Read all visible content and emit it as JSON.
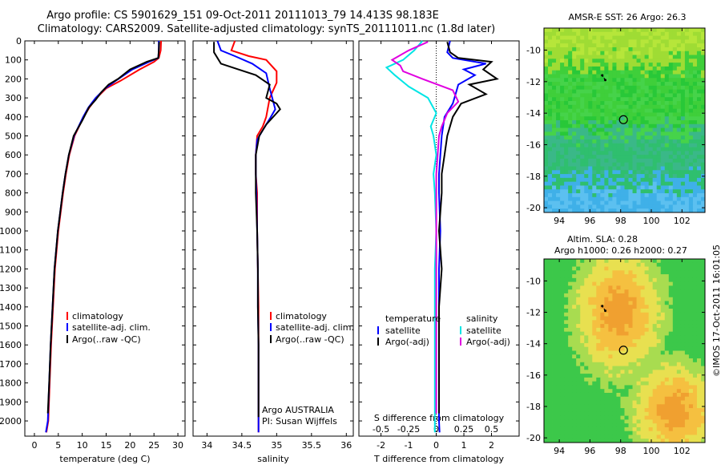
{
  "header": {
    "line1": "Argo profile: CS 5901629_151 09-Oct-2011 20111013_79 14.413S 98.183E",
    "line2": "Climatology: CARS2009. Satellite-adjusted climatology: synTS_20111011.nc (1.8d later)"
  },
  "colors": {
    "climatology": "#ff0000",
    "satellite": "#0000ff",
    "argo": "#000000",
    "sal_satellite": "#00e5e5",
    "sal_argo": "#e000e0"
  },
  "depth_ticks": [
    "0",
    "100",
    "200",
    "300",
    "400",
    "500",
    "600",
    "700",
    "800",
    "900",
    "1000",
    "1100",
    "1200",
    "1300",
    "1400",
    "1500",
    "1600",
    "1700",
    "1800",
    "1900",
    "2000"
  ],
  "chart_data": [
    {
      "type": "line",
      "xlabel": "temperature (deg C)",
      "xticks": [
        "0",
        "5",
        "10",
        "15",
        "20",
        "25",
        "30"
      ],
      "xlim": [
        -2,
        31.5
      ],
      "ylim": [
        2080,
        0
      ],
      "legend": [
        "climatology",
        "satellite-adj. clim.",
        "Argo(..raw -QC)"
      ],
      "series": [
        {
          "name": "climatology",
          "x": [
            26.5,
            26.4,
            26.0,
            25.0,
            22.0,
            18.0,
            15.0,
            13.0,
            11.5,
            10.3,
            8.4,
            7.3,
            6.6,
            6.0,
            5.0,
            4.3,
            3.9,
            3.5,
            3.2,
            2.9,
            2.5
          ],
          "y": [
            0,
            50,
            90,
            110,
            150,
            210,
            250,
            300,
            350,
            400,
            500,
            600,
            700,
            800,
            1000,
            1200,
            1400,
            1600,
            1800,
            2000,
            2060
          ]
        },
        {
          "name": "satellite-adj. clim.",
          "x": [
            26.0,
            26.0,
            25.9,
            24.0,
            20.5,
            17.0,
            14.8,
            12.8,
            11.3,
            10.2,
            8.3,
            7.2,
            6.5,
            5.9,
            4.9,
            4.2,
            3.8,
            3.4,
            3.1,
            2.8,
            2.4
          ],
          "y": [
            0,
            50,
            90,
            110,
            150,
            210,
            250,
            300,
            350,
            400,
            500,
            600,
            700,
            800,
            1000,
            1200,
            1400,
            1600,
            1800,
            2000,
            2060
          ]
        },
        {
          "name": "Argo(..raw -QC)",
          "x": [
            26.1,
            26.0,
            25.9,
            23.5,
            20.0,
            17.5,
            15.5,
            14.0,
            12.8,
            11.4,
            10.0,
            8.2,
            7.2,
            6.5,
            5.9,
            4.9,
            4.2,
            3.8,
            3.4,
            3.1,
            2.8
          ],
          "y": [
            5,
            50,
            90,
            110,
            150,
            200,
            230,
            270,
            310,
            350,
            420,
            500,
            600,
            700,
            800,
            1000,
            1200,
            1400,
            1600,
            1800,
            1960
          ]
        }
      ]
    },
    {
      "type": "line",
      "xlabel": "salinity",
      "xticks": [
        "34",
        "34.5",
        "35",
        "35.5",
        "36"
      ],
      "xlim": [
        33.8,
        36.1
      ],
      "ylim": [
        2080,
        0
      ],
      "legend": [
        "climatology",
        "satellite-adj. clim.",
        "Argo(..raw -QC)"
      ],
      "annotation": [
        "Argo AUSTRALIA",
        "PI: Susan Wijffels"
      ],
      "series": [
        {
          "name": "climatology",
          "x": [
            34.4,
            34.35,
            34.6,
            34.85,
            35.0,
            35.0,
            34.9,
            34.85,
            34.8,
            34.72,
            34.7,
            34.7,
            34.72,
            34.72,
            34.73,
            34.74,
            34.74,
            34.74,
            34.74,
            34.74
          ],
          "y": [
            0,
            50,
            80,
            100,
            160,
            220,
            300,
            400,
            450,
            500,
            600,
            700,
            800,
            1000,
            1200,
            1400,
            1600,
            1800,
            2000,
            2060
          ]
        },
        {
          "name": "satellite-adj. clim.",
          "x": [
            34.15,
            34.2,
            34.4,
            34.65,
            34.85,
            34.9,
            34.98,
            34.9,
            34.8,
            34.72,
            34.7,
            34.7,
            34.71,
            34.72,
            34.73,
            34.73,
            34.74,
            34.74,
            34.74,
            34.74
          ],
          "y": [
            0,
            50,
            80,
            120,
            170,
            250,
            360,
            410,
            470,
            520,
            600,
            700,
            800,
            1000,
            1200,
            1400,
            1600,
            1800,
            2000,
            2060
          ]
        },
        {
          "name": "Argo(..raw -QC)",
          "x": [
            34.1,
            34.1,
            34.2,
            34.45,
            34.7,
            34.9,
            34.85,
            35.0,
            35.05,
            34.85,
            34.75,
            34.7,
            34.7,
            34.7,
            34.72,
            34.73,
            34.73,
            34.74,
            34.74,
            34.74
          ],
          "y": [
            5,
            60,
            120,
            150,
            180,
            230,
            300,
            330,
            360,
            440,
            500,
            600,
            700,
            800,
            1000,
            1200,
            1400,
            1600,
            1800,
            1980
          ]
        }
      ]
    },
    {
      "type": "line",
      "xlabel": "T difference from climatology",
      "xlabel2": "S difference from climatology",
      "xticks": [
        "-2",
        "-1",
        "0",
        "1",
        "2"
      ],
      "xticks2": [
        "-0.5",
        "-0.25",
        "0",
        "0.25",
        "0.5"
      ],
      "xlim": [
        -2.8,
        3.0
      ],
      "ylim": [
        2080,
        0
      ],
      "legend_groups": [
        {
          "title": "temperature",
          "items": [
            "satellite",
            "Argo(-adj)"
          ]
        },
        {
          "title": "salinity",
          "items": [
            "satellite",
            "Argo(-adj)"
          ]
        }
      ],
      "series": [
        {
          "name": "temperature satellite",
          "x": [
            0.5,
            0.4,
            0.6,
            1.8,
            1.0,
            1.4,
            0.8,
            0.7,
            0.6,
            0.3,
            0.2,
            0.15,
            0.1,
            0.1,
            0.15,
            0.1,
            0.1,
            0.1,
            0.1,
            0.1,
            0.12
          ],
          "y": [
            0,
            60,
            90,
            120,
            150,
            180,
            230,
            280,
            330,
            400,
            500,
            600,
            700,
            800,
            1000,
            1200,
            1400,
            1600,
            1800,
            2000,
            2060
          ]
        },
        {
          "name": "temperature Argo(-adj)",
          "x": [
            0.4,
            0.5,
            0.8,
            2.0,
            1.7,
            2.2,
            1.2,
            1.8,
            0.9,
            0.6,
            0.4,
            0.3,
            0.2,
            0.2,
            0.1,
            0.2,
            0.1,
            0.1,
            0.1,
            0.1
          ],
          "y": [
            5,
            60,
            90,
            110,
            150,
            200,
            230,
            280,
            330,
            400,
            500,
            600,
            700,
            800,
            1000,
            1200,
            1400,
            1600,
            1800,
            1960
          ]
        },
        {
          "name": "salinity satellite",
          "x": [
            -0.5,
            -0.8,
            -1.2,
            -1.8,
            -1.5,
            -1.0,
            -0.3,
            0.0,
            -0.2,
            -0.1,
            0.0,
            -0.1,
            -0.05,
            0.0,
            -0.05,
            -0.05,
            -0.05,
            -0.05,
            -0.05,
            -0.05
          ],
          "y": [
            0,
            50,
            100,
            140,
            180,
            240,
            300,
            380,
            450,
            500,
            600,
            700,
            800,
            1000,
            1200,
            1400,
            1600,
            1800,
            2000,
            2060
          ]
        },
        {
          "name": "salinity Argo(-adj)",
          "x": [
            -0.3,
            -1.0,
            -1.6,
            -1.3,
            -1.2,
            -0.5,
            0.6,
            0.8,
            0.4,
            0.2,
            0.1,
            0.05,
            0.0,
            0.0,
            0.0,
            0.0,
            0.0,
            0.0,
            0.0,
            0.0
          ],
          "y": [
            5,
            50,
            100,
            130,
            160,
            200,
            260,
            320,
            380,
            450,
            500,
            600,
            700,
            800,
            1000,
            1200,
            1400,
            1600,
            1800,
            1960
          ]
        }
      ]
    },
    {
      "type": "heatmap",
      "title": "AMSR-E SST: 26 Argo: 26.3",
      "xticks": [
        "94",
        "96",
        "98",
        "100",
        "102"
      ],
      "yticks": [
        "-10",
        "-12",
        "-14",
        "-16",
        "-18",
        "-20"
      ],
      "xlim": [
        93,
        103.5
      ],
      "ylim": [
        -20.3,
        -8.6
      ],
      "marker": {
        "lon": 98.183,
        "lat": -14.413
      },
      "track": [
        {
          "lon": 96.8,
          "lat": -11.6
        },
        {
          "lon": 97.0,
          "lat": -11.9
        }
      ]
    },
    {
      "type": "heatmap",
      "title": "Altim. SLA: 0.28",
      "subtitle": "Argo h1000: 0.26 h2000: 0.27",
      "xticks": [
        "94",
        "96",
        "98",
        "100",
        "102"
      ],
      "yticks": [
        "-10",
        "-12",
        "-14",
        "-16",
        "-18",
        "-20"
      ],
      "xlim": [
        93,
        103.5
      ],
      "ylim": [
        -20.3,
        -8.6
      ],
      "marker": {
        "lon": 98.183,
        "lat": -14.413
      },
      "track": [
        {
          "lon": 96.8,
          "lat": -11.6
        },
        {
          "lon": 97.0,
          "lat": -11.9
        }
      ]
    }
  ],
  "footer_stamp": "©IMOS 17-Oct-2011 16:01:05"
}
